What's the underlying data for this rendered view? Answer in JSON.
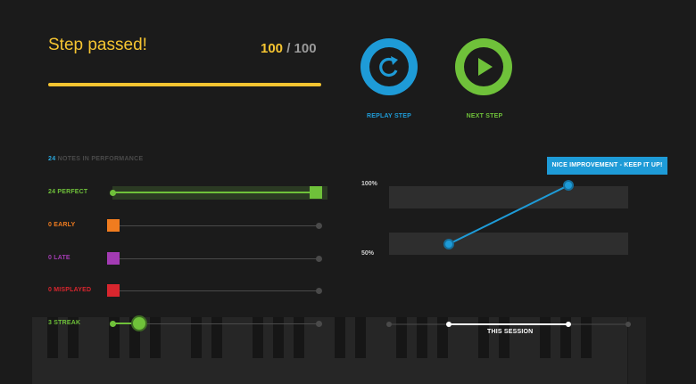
{
  "header": {
    "title": "Step passed!",
    "score_current": "100",
    "score_separator": " / ",
    "score_total": "100",
    "progress": 1.0
  },
  "buttons": {
    "replay_label": "REPLAY STEP",
    "next_label": "NEXT STEP"
  },
  "stats": {
    "notes_count": "24",
    "notes_caption": " NOTES IN PERFORMANCE",
    "rows": [
      {
        "label": "24 PERFECT",
        "color": "#6fc13a",
        "value": 24,
        "max": 24
      },
      {
        "label": "0 EARLY",
        "color": "#f07c1f",
        "value": 0,
        "max": 24
      },
      {
        "label": "0 LATE",
        "color": "#a33bb3",
        "value": 0,
        "max": 24
      },
      {
        "label": "0 MISPLAYED",
        "color": "#d8262e",
        "value": 0,
        "max": 24
      },
      {
        "label": "3 STREAK",
        "color": "#6fc13a",
        "value": 3,
        "max": 24
      }
    ]
  },
  "chart": {
    "y_top_label": "100%",
    "y_mid_label": "50%",
    "tooltip": "NICE IMPROVEMENT - KEEP IT UP!",
    "session_label": "THIS SESSION"
  },
  "colors": {
    "accent_yellow": "#f5c431",
    "replay_blue": "#1e9bd7",
    "next_green": "#6fc13a"
  }
}
